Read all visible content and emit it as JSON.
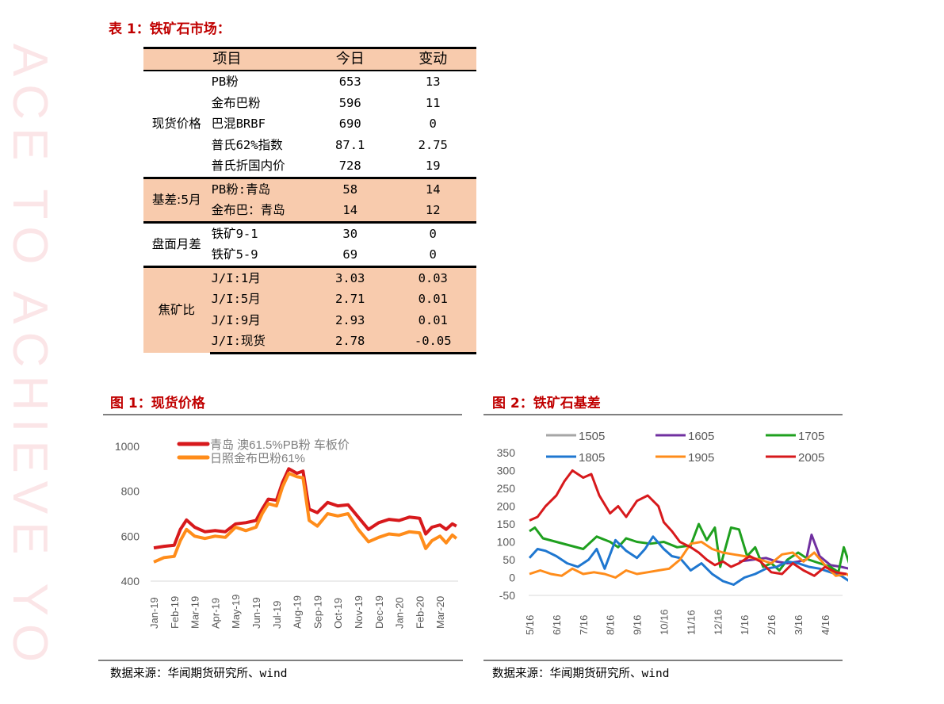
{
  "watermark": "ACE TO ACHIEVE YO",
  "table1": {
    "title": "表 1：铁矿石市场：",
    "headers": [
      "项目",
      "今日",
      "变动"
    ],
    "groups": [
      {
        "name": "现货价格",
        "shaded": false,
        "rows": [
          {
            "item": "PB粉",
            "today": "653",
            "change": "13"
          },
          {
            "item": "金布巴粉",
            "today": "596",
            "change": "11"
          },
          {
            "item": "巴混BRBF",
            "today": "690",
            "change": "0"
          },
          {
            "item": "普氏62%指数",
            "today": "87.1",
            "change": "2.75"
          },
          {
            "item": "普氏折国内价",
            "today": "728",
            "change": "19"
          }
        ]
      },
      {
        "name": "基差:5月",
        "shaded": true,
        "rows": [
          {
            "item": "PB粉:青岛",
            "today": "58",
            "change": "14"
          },
          {
            "item": "金布巴：青岛",
            "today": "14",
            "change": "12"
          }
        ]
      },
      {
        "name": "盘面月差",
        "shaded": false,
        "rows": [
          {
            "item": "铁矿9-1",
            "today": "30",
            "change": "0"
          },
          {
            "item": "铁矿5-9",
            "today": "69",
            "change": "0"
          }
        ]
      },
      {
        "name": "焦矿比",
        "shaded": true,
        "rows": [
          {
            "item": "J/I:1月",
            "today": "3.03",
            "change": "0.03"
          },
          {
            "item": "J/I:5月",
            "today": "2.71",
            "change": "0.01"
          },
          {
            "item": "J/I:9月",
            "today": "2.93",
            "change": "0.01"
          },
          {
            "item": "J/I:现货",
            "today": "2.78",
            "change": "-0.05"
          }
        ]
      }
    ]
  },
  "figure1": {
    "title": "图 1：现货价格",
    "source": "数据来源：华闻期货研究所、wind"
  },
  "figure2": {
    "title": "图 2：铁矿石基差",
    "source": "数据来源：华闻期货研究所、wind"
  },
  "chart_data": [
    {
      "type": "line",
      "title": "图 1：现货价格",
      "xlabel": "",
      "ylabel": "",
      "ylim": [
        400,
        1000
      ],
      "yticks": [
        400,
        600,
        800,
        1000
      ],
      "grid": false,
      "legend_position": "top-left inside",
      "categories": [
        "Jan-19",
        "Feb-19",
        "Mar-19",
        "Apr-19",
        "May-19",
        "Jun-19",
        "Jul-19",
        "Aug-19",
        "Sep-19",
        "Oct-19",
        "Nov-19",
        "Dec-19",
        "Jan-20",
        "Feb-20",
        "Mar-20"
      ],
      "x": [
        0,
        0.5,
        1,
        1.3,
        1.6,
        2,
        2.5,
        3,
        3.5,
        4,
        4.5,
        5,
        5.3,
        5.6,
        6,
        6.3,
        6.6,
        7,
        7.3,
        7.6,
        8,
        8.5,
        9,
        9.5,
        10,
        10.5,
        11,
        11.5,
        12,
        12.5,
        13,
        13.3,
        13.6,
        14,
        14.3,
        14.6,
        14.8
      ],
      "series": [
        {
          "name": "青岛 澳61.5%PB粉 车板价",
          "color": "#d7191c",
          "values": [
            548,
            555,
            560,
            630,
            672,
            640,
            620,
            625,
            620,
            655,
            660,
            670,
            720,
            765,
            760,
            840,
            900,
            880,
            890,
            720,
            705,
            750,
            735,
            740,
            685,
            630,
            660,
            675,
            670,
            685,
            680,
            610,
            640,
            650,
            630,
            655,
            645
          ]
        },
        {
          "name": "日照金布巴粉61%",
          "color": "#ff8c1a",
          "values": [
            485,
            505,
            510,
            580,
            630,
            600,
            590,
            600,
            595,
            640,
            625,
            640,
            700,
            745,
            735,
            820,
            880,
            865,
            860,
            670,
            645,
            700,
            690,
            700,
            630,
            575,
            595,
            610,
            605,
            620,
            615,
            545,
            580,
            600,
            570,
            605,
            590
          ]
        }
      ]
    },
    {
      "type": "line",
      "title": "图 2：铁矿石基差",
      "xlabel": "",
      "ylabel": "",
      "ylim": [
        -50,
        350
      ],
      "yticks": [
        -50,
        0,
        50,
        100,
        150,
        200,
        250,
        300,
        350
      ],
      "grid": false,
      "legend_position": "top, 3 columns",
      "categories": [
        "5/16",
        "6/16",
        "7/16",
        "8/16",
        "9/16",
        "10/16",
        "11/16",
        "12/16",
        "1/16",
        "2/16",
        "3/16",
        "4/16"
      ],
      "series": [
        {
          "name": "1505",
          "color": "#a6a6a6",
          "x": [],
          "values": []
        },
        {
          "name": "1605",
          "color": "#7030a0",
          "x": [
            7.8,
            8.3,
            8.8,
            9.2,
            9.6,
            10.0,
            10.3,
            10.5,
            10.8,
            11.2,
            11.6,
            11.9
          ],
          "values": [
            45,
            50,
            55,
            45,
            40,
            45,
            50,
            120,
            60,
            35,
            30,
            25
          ]
        },
        {
          "name": "1705",
          "color": "#1fa01f",
          "x": [
            0,
            0.2,
            0.5,
            1,
            1.5,
            2,
            2.5,
            3,
            3.3,
            3.6,
            4,
            4.5,
            5,
            5.5,
            6,
            6.3,
            6.6,
            6.9,
            7.1,
            7.5,
            7.8,
            8.1,
            8.4,
            8.7,
            9,
            9.3,
            9.6,
            10,
            10.4,
            10.8,
            11.2,
            11.5,
            11.7,
            11.9
          ],
          "values": [
            130,
            140,
            110,
            100,
            90,
            80,
            115,
            100,
            85,
            110,
            100,
            95,
            100,
            85,
            90,
            150,
            105,
            140,
            30,
            140,
            135,
            60,
            85,
            30,
            40,
            20,
            50,
            70,
            50,
            40,
            30,
            15,
            85,
            40
          ]
        },
        {
          "name": "1805",
          "color": "#1f77d0",
          "x": [
            0,
            0.3,
            0.6,
            1,
            1.4,
            1.8,
            2.2,
            2.5,
            2.8,
            3.2,
            3.6,
            4,
            4.3,
            4.6,
            5,
            5.3,
            5.6,
            6,
            6.4,
            6.8,
            7.2,
            7.6,
            8,
            8.4,
            8.8,
            9.2,
            9.6,
            10,
            10.4,
            10.8,
            11.2,
            11.6,
            11.9
          ],
          "values": [
            55,
            80,
            75,
            60,
            40,
            30,
            50,
            80,
            25,
            105,
            75,
            55,
            80,
            115,
            80,
            60,
            55,
            20,
            40,
            10,
            -10,
            -20,
            0,
            10,
            25,
            30,
            45,
            40,
            30,
            25,
            15,
            5,
            -10
          ]
        },
        {
          "name": "1905",
          "color": "#ff8c1a",
          "x": [
            0,
            0.4,
            0.8,
            1.2,
            1.6,
            2,
            2.4,
            2.8,
            3.2,
            3.6,
            4,
            4.4,
            4.8,
            5.2,
            5.6,
            6,
            6.4,
            6.8,
            7.2,
            7.6,
            8,
            8.3,
            8.6,
            9,
            9.4,
            9.8,
            10.2,
            10.6,
            11,
            11.4,
            11.8,
            12
          ],
          "values": [
            10,
            20,
            10,
            5,
            25,
            10,
            15,
            10,
            0,
            20,
            10,
            15,
            20,
            25,
            50,
            95,
            100,
            80,
            70,
            65,
            60,
            55,
            50,
            40,
            65,
            70,
            45,
            70,
            35,
            5,
            10,
            0
          ]
        },
        {
          "name": "2005",
          "color": "#d7191c",
          "x": [
            0,
            0.3,
            0.6,
            1,
            1.3,
            1.6,
            2,
            2.3,
            2.6,
            3,
            3.3,
            3.6,
            4,
            4.4,
            4.8,
            5,
            5.3,
            5.6,
            6,
            6.3,
            6.6,
            6.9,
            7.2,
            7.5,
            7.8,
            8.2,
            8.6,
            9,
            9.4,
            9.8,
            10.2,
            10.6,
            11,
            11.4,
            11.8
          ],
          "values": [
            160,
            170,
            200,
            230,
            270,
            300,
            280,
            290,
            230,
            180,
            200,
            170,
            215,
            230,
            200,
            155,
            130,
            100,
            85,
            70,
            50,
            35,
            45,
            30,
            40,
            60,
            45,
            15,
            10,
            40,
            20,
            5,
            30,
            15,
            10
          ]
        }
      ]
    }
  ]
}
